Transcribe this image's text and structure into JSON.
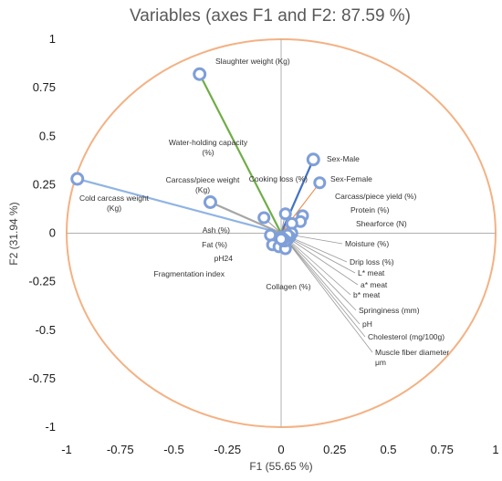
{
  "chart_data": {
    "type": "scatter",
    "title": "Variables (axes F1 and F2: 87.59 %)",
    "xlabel": "F1 (55.65 %)",
    "ylabel": "F2 (31.94 %)",
    "xlim": [
      -1,
      1
    ],
    "ylim": [
      -1,
      1
    ],
    "xticks": [
      "-1",
      "-0.75",
      "-0.5",
      "-0.25",
      "0",
      "0.25",
      "0.5",
      "0.75",
      "1"
    ],
    "yticks": [
      "1",
      "0.75",
      "0.5",
      "0.25",
      "0",
      "-0.25",
      "-0.5",
      "-0.75",
      "-1"
    ],
    "grid": false,
    "unit_circle": true,
    "colors": {
      "circle": "#f4b183",
      "marker": "#7f9fd8",
      "default_line": "#999999",
      "axis": "#b0b0b0"
    },
    "points": [
      {
        "label": "Slaughter weight (Kg)",
        "x": -0.38,
        "y": 0.82,
        "color": "#70ad47"
      },
      {
        "label": "Cold carcass weight (Kg)",
        "x": -0.95,
        "y": 0.28,
        "color": "#8fb4e3"
      },
      {
        "label": "Carcass/piece weight (Kg)",
        "x": -0.33,
        "y": 0.16,
        "color": "#a6a6a6"
      },
      {
        "label": "Water-holding capacity (%)",
        "x": -0.08,
        "y": 0.08,
        "color": "#999999"
      },
      {
        "label": "Sex-Male",
        "x": 0.15,
        "y": 0.38,
        "color": "#4472c4"
      },
      {
        "label": "Sex-Female",
        "x": 0.18,
        "y": 0.26,
        "color": "#ed7d31"
      },
      {
        "label": "Cooking loss (%)",
        "x": 0.02,
        "y": 0.1,
        "color": "#999999"
      },
      {
        "label": "Carcass/piece yield (%)",
        "x": 0.1,
        "y": 0.09,
        "color": "#999999"
      },
      {
        "label": "Protein (%)",
        "x": 0.09,
        "y": 0.06,
        "color": "#999999"
      },
      {
        "label": "Shearforce (N)",
        "x": 0.05,
        "y": 0.05,
        "color": "#999999"
      },
      {
        "label": "Ash (%)",
        "x": -0.05,
        "y": -0.01,
        "color": "#999999"
      },
      {
        "label": "Fat (%)",
        "x": -0.04,
        "y": -0.06,
        "color": "#999999"
      },
      {
        "label": "pH24",
        "x": -0.01,
        "y": -0.07,
        "color": "#999999"
      },
      {
        "label": "Fragmentation index",
        "x": 0.02,
        "y": -0.08,
        "color": "#999999"
      },
      {
        "label": "Collagen (%)",
        "x": 0.01,
        "y": -0.04,
        "color": "#999999"
      },
      {
        "label": "Moisture (%)",
        "x": 0.05,
        "y": 0.0,
        "color": "#999999"
      },
      {
        "label": "Drip loss (%)",
        "x": 0.04,
        "y": -0.02,
        "color": "#999999"
      },
      {
        "label": "L* meat",
        "x": 0.03,
        "y": -0.03,
        "color": "#999999"
      },
      {
        "label": "a* meat",
        "x": 0.02,
        "y": -0.02,
        "color": "#999999"
      },
      {
        "label": "b* meat",
        "x": 0.03,
        "y": -0.01,
        "color": "#999999"
      },
      {
        "label": "Springiness (mm)",
        "x": 0.02,
        "y": -0.04,
        "color": "#999999"
      },
      {
        "label": "pH",
        "x": 0.01,
        "y": -0.03,
        "color": "#999999"
      },
      {
        "label": "Cholesterol (mg/100g)",
        "x": 0.0,
        "y": -0.02,
        "color": "#999999"
      },
      {
        "label": "Muscle fiber diameter μm",
        "x": 0.0,
        "y": -0.03,
        "color": "#999999"
      }
    ]
  }
}
